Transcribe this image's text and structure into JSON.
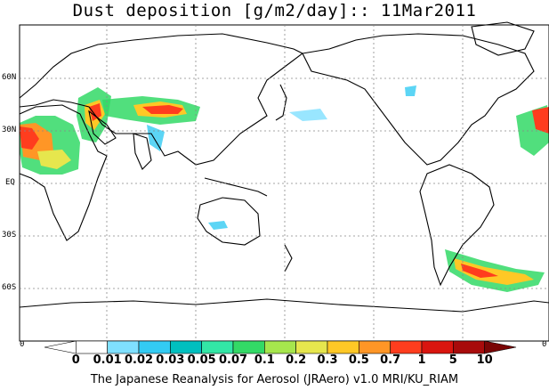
{
  "title": "Dust deposition [g/m2/day]:: 11Mar2011",
  "map": {
    "lat_labels": [
      {
        "label": "60N",
        "lat": 60
      },
      {
        "label": "30N",
        "lat": 30
      },
      {
        "label": "EQ",
        "lat": 0
      },
      {
        "label": "30S",
        "lat": -30
      },
      {
        "label": "60S",
        "lat": -60
      }
    ],
    "lon_range": [
      -20,
      340
    ],
    "lat_range": [
      -90,
      90
    ],
    "grid": "dotted",
    "corner_labels": {
      "left": "0",
      "right": "0"
    }
  },
  "colorbar": {
    "labels": [
      "0",
      "0.01",
      "0.02",
      "0.03",
      "0.05",
      "0.07",
      "0.1",
      "0.2",
      "0.3",
      "0.5",
      "0.7",
      "1",
      "5",
      "10"
    ],
    "colors": [
      "#ffffff",
      "#ffffff",
      "#7fe0ff",
      "#33cbf3",
      "#00bfbf",
      "#33e6a6",
      "#33d966",
      "#a6e64d",
      "#e6e64d",
      "#ffc826",
      "#ff9626",
      "#ff3d1e",
      "#d9150f",
      "#a80b0b",
      "#7a0505"
    ]
  },
  "footer": "The Japanese Reanalysis for Aerosol (JRAero) v1.0 MRI/KU_RIAM"
}
